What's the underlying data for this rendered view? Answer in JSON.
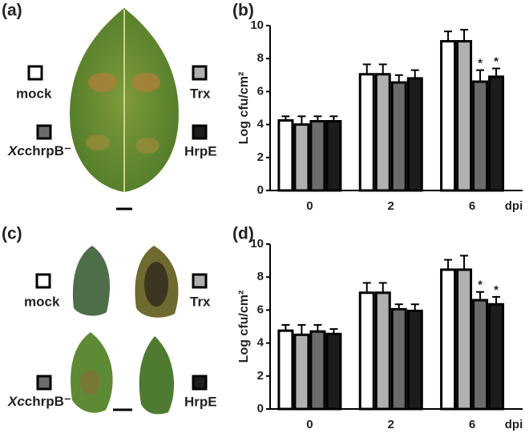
{
  "photo_panels": [
    {
      "label": "(a)"
    },
    {
      "label": "(c)"
    }
  ],
  "chart_data": [
    {
      "type": "bar",
      "label": "(b)",
      "categories": [
        "0",
        "2",
        "6"
      ],
      "x_label": "dpi",
      "y_label": "Log cfu/cm²",
      "ylim": [
        0,
        10
      ],
      "yticks": [
        0,
        2,
        4,
        6,
        8,
        10
      ],
      "series": [
        {
          "name": "mock",
          "color": "#ffffff",
          "values": [
            4.25,
            7.05,
            9.05
          ],
          "errors": [
            0.25,
            0.6,
            0.6
          ]
        },
        {
          "name": "Trx",
          "color": "#b0b0b0",
          "values": [
            4.0,
            7.05,
            9.05
          ],
          "errors": [
            0.5,
            0.6,
            0.7
          ]
        },
        {
          "name": "XcchrpB⁻",
          "color": "#6b6b6b",
          "values": [
            4.2,
            6.55,
            6.6
          ],
          "errors": [
            0.3,
            0.45,
            0.7
          ],
          "significance": [
            null,
            null,
            "*"
          ]
        },
        {
          "name": "HrpE",
          "color": "#1c1c1c",
          "values": [
            4.2,
            6.8,
            6.9
          ],
          "errors": [
            0.3,
            0.5,
            0.5
          ],
          "significance": [
            null,
            null,
            "*"
          ]
        }
      ]
    },
    {
      "type": "bar",
      "label": "(d)",
      "categories": [
        "0",
        "2",
        "6"
      ],
      "x_label": "dpi",
      "y_label": "Log cfu/cm²",
      "ylim": [
        0,
        10
      ],
      "yticks": [
        0,
        2,
        4,
        6,
        8,
        10
      ],
      "series": [
        {
          "name": "mock",
          "color": "#ffffff",
          "values": [
            4.75,
            7.05,
            8.45
          ],
          "errors": [
            0.35,
            0.6,
            0.6
          ]
        },
        {
          "name": "Trx",
          "color": "#b0b0b0",
          "values": [
            4.5,
            7.05,
            8.45
          ],
          "errors": [
            0.6,
            0.6,
            0.85
          ]
        },
        {
          "name": "XcchrpB⁻",
          "color": "#6b6b6b",
          "values": [
            4.7,
            6.05,
            6.6
          ],
          "errors": [
            0.4,
            0.3,
            0.5
          ],
          "significance": [
            null,
            null,
            "*"
          ]
        },
        {
          "name": "HrpE",
          "color": "#1c1c1c",
          "values": [
            4.55,
            5.95,
            6.35
          ],
          "errors": [
            0.3,
            0.4,
            0.45
          ],
          "significance": [
            null,
            null,
            "*"
          ]
        }
      ]
    }
  ]
}
